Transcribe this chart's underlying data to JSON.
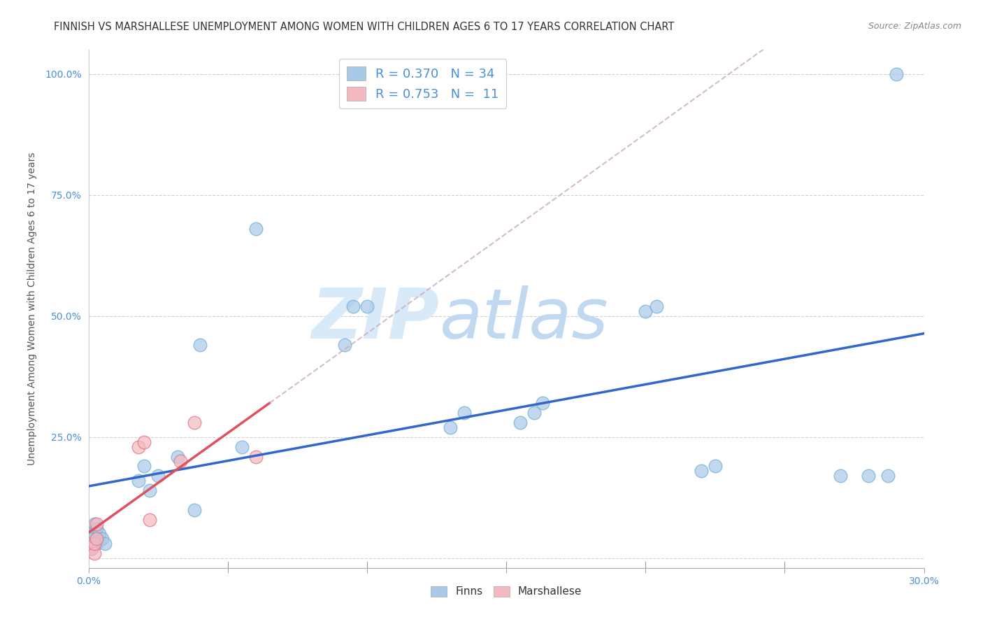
{
  "title": "FINNISH VS MARSHALLESE UNEMPLOYMENT AMONG WOMEN WITH CHILDREN AGES 6 TO 17 YEARS CORRELATION CHART",
  "source": "Source: ZipAtlas.com",
  "ylabel": "Unemployment Among Women with Children Ages 6 to 17 years",
  "xlim": [
    0.0,
    0.3
  ],
  "ylim": [
    -0.02,
    1.05
  ],
  "xticks": [
    0.0,
    0.05,
    0.1,
    0.15,
    0.2,
    0.25,
    0.3
  ],
  "xticklabels": [
    "0.0%",
    "",
    "",
    "",
    "",
    "",
    "30.0%"
  ],
  "yticks": [
    0.0,
    0.25,
    0.5,
    0.75,
    1.0
  ],
  "yticklabels": [
    "",
    "25.0%",
    "50.0%",
    "75.0%",
    "100.0%"
  ],
  "legend1_r": "0.370",
  "legend1_n": "34",
  "legend2_r": "0.753",
  "legend2_n": "11",
  "finns_x": [
    0.001,
    0.001,
    0.002,
    0.002,
    0.003,
    0.003,
    0.004,
    0.005,
    0.006,
    0.018,
    0.02,
    0.022,
    0.025,
    0.032,
    0.038,
    0.04,
    0.055,
    0.06,
    0.092,
    0.095,
    0.1,
    0.13,
    0.135,
    0.155,
    0.16,
    0.163,
    0.2,
    0.204,
    0.22,
    0.225,
    0.27,
    0.28,
    0.287,
    0.29
  ],
  "finns_y": [
    0.02,
    0.04,
    0.05,
    0.07,
    0.03,
    0.06,
    0.05,
    0.04,
    0.03,
    0.16,
    0.19,
    0.14,
    0.17,
    0.21,
    0.1,
    0.44,
    0.23,
    0.68,
    0.44,
    0.52,
    0.52,
    0.27,
    0.3,
    0.28,
    0.3,
    0.32,
    0.51,
    0.52,
    0.18,
    0.19,
    0.17,
    0.17,
    0.17,
    1.0
  ],
  "marshallese_x": [
    0.001,
    0.002,
    0.002,
    0.003,
    0.003,
    0.018,
    0.02,
    0.022,
    0.033,
    0.038,
    0.06
  ],
  "marshallese_y": [
    0.02,
    0.01,
    0.03,
    0.04,
    0.07,
    0.23,
    0.24,
    0.08,
    0.2,
    0.28,
    0.21
  ],
  "finn_color": "#a8c8e8",
  "finn_edge_color": "#6baed6",
  "marshallese_color": "#f4b8c0",
  "marshallese_edge_color": "#e07080",
  "finn_line_color": "#3366cc",
  "marshallese_line_color": "#e05060",
  "marsh_dash_color": "#e8b0b8",
  "watermark_color": "#daeaf8",
  "background_color": "#ffffff",
  "title_color": "#333333",
  "axis_label_color": "#555555",
  "tick_color": "#4a90d9",
  "grid_color": "#cccccc",
  "title_fontsize": 10.5,
  "axis_label_fontsize": 10,
  "tick_fontsize": 10,
  "legend_fontsize": 13
}
